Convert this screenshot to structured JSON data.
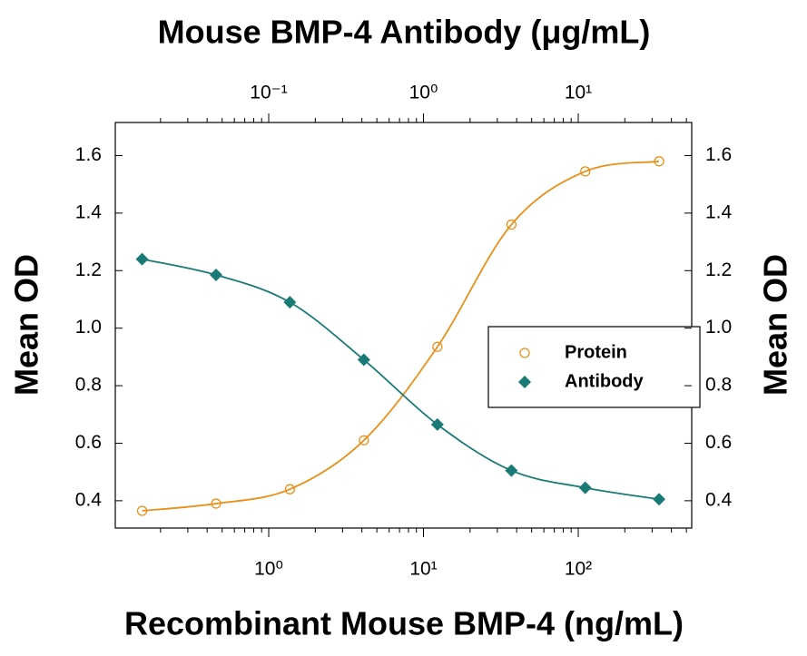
{
  "chart_data": {
    "type": "scatter",
    "title": "Mouse BMP-4 Antibody (μg/mL)",
    "x_label": "Recombinant Mouse BMP-4 (ng/mL)",
    "y_label": "Mean OD",
    "y2_label": "Mean OD",
    "x_log": true,
    "x": [
      0.152,
      0.457,
      1.37,
      4.12,
      12.3,
      37,
      111,
      333
    ],
    "series": [
      {
        "name": "Protein",
        "color": "#e8901a",
        "marker": "circle-open",
        "values": [
          0.365,
          0.39,
          0.44,
          0.61,
          0.935,
          1.36,
          1.545,
          1.58
        ]
      },
      {
        "name": "Antibody",
        "color": "#1a7a76",
        "marker": "diamond",
        "values": [
          1.24,
          1.185,
          1.09,
          0.89,
          0.665,
          0.505,
          0.445,
          0.405
        ]
      }
    ],
    "xlim": [
      0.102,
      541
    ],
    "xticks": [
      {
        "value": 1,
        "label": "10⁰"
      },
      {
        "value": 10,
        "label": "10¹"
      },
      {
        "value": 100,
        "label": "10²"
      }
    ],
    "x2lim": [
      0.0102,
      54.1
    ],
    "x2ticks": [
      {
        "value": 0.1,
        "label": "10⁻¹"
      },
      {
        "value": 1,
        "label": "10⁰"
      },
      {
        "value": 10,
        "label": "10¹"
      }
    ],
    "ylim": [
      0.305,
      1.715
    ],
    "yticks": [
      0.4,
      0.6,
      0.8,
      {
        "value": 1,
        "label": "1.0"
      },
      1.2,
      1.4,
      1.6
    ],
    "y2lim": [
      0.305,
      1.715
    ],
    "y2ticks": [
      0.4,
      0.6,
      0.8,
      {
        "value": 1,
        "label": "1.0"
      },
      1.2,
      1.4,
      1.6
    ]
  }
}
